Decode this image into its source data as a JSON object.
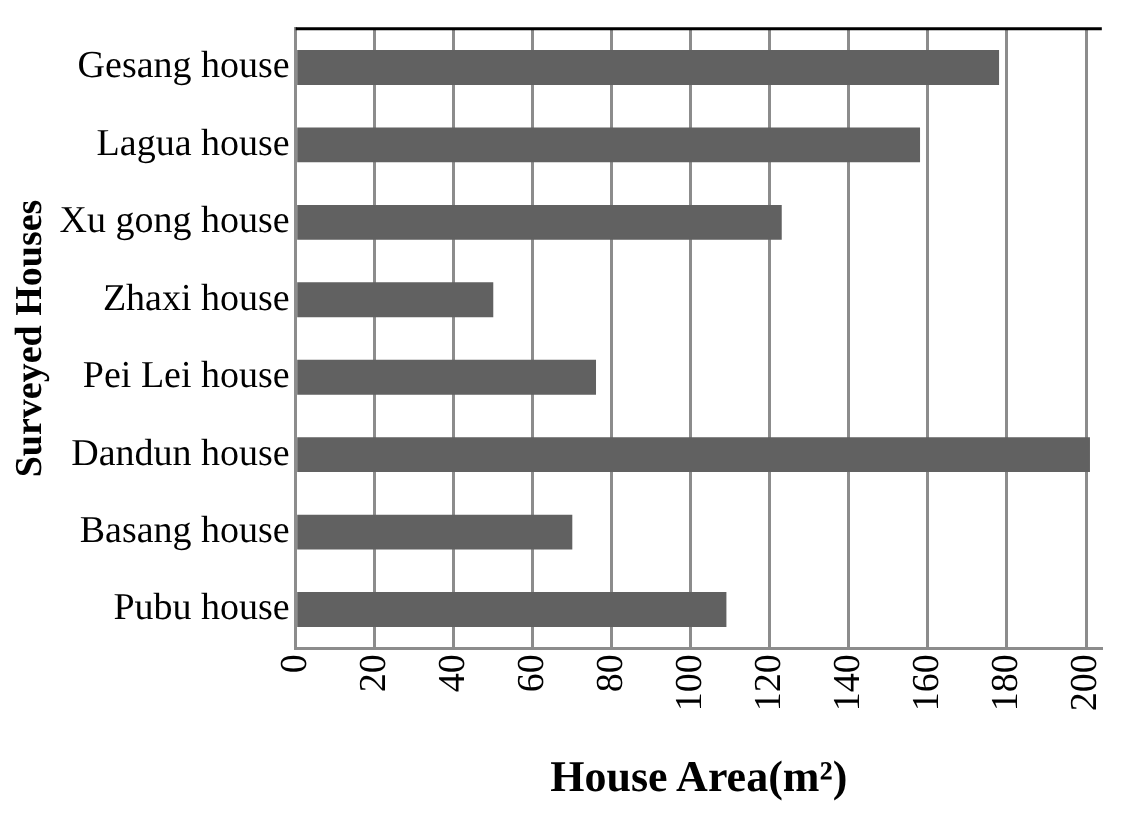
{
  "chart_data": {
    "type": "bar",
    "orientation": "horizontal",
    "xlabel": "House Area(m²)",
    "ylabel": "Surveyed Houses",
    "categories": [
      "Gesang house",
      "Lagua house",
      "Xu gong house",
      "Zhaxi house",
      "Pei Lei house",
      "Dandun house",
      "Basang house",
      "Pubu house"
    ],
    "values": [
      178,
      158,
      123,
      50,
      76,
      201,
      70,
      109
    ],
    "color": "#616161",
    "xlim": [
      0,
      204
    ],
    "xticks": [
      0,
      20,
      40,
      60,
      80,
      100,
      120,
      140,
      160,
      180,
      200
    ],
    "grid": "x",
    "legend": false
  }
}
